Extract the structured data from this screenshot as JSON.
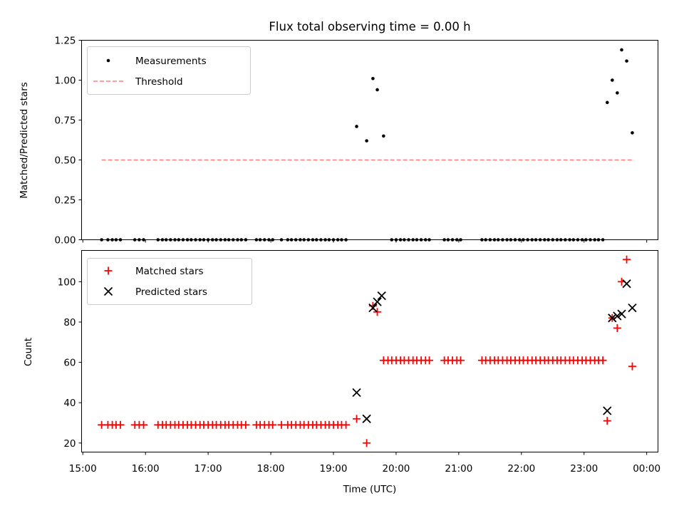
{
  "chart_data": [
    {
      "type": "scatter",
      "title": "Flux total observing time = 0.00 h",
      "ylabel": "Matched/Predicted stars",
      "xlabel": "",
      "ylim": [
        0,
        1.25
      ],
      "yticks": [
        "0.00",
        "0.25",
        "0.50",
        "0.75",
        "1.00",
        "1.25"
      ],
      "ytick_values": [
        0,
        0.25,
        0.5,
        0.75,
        1.0,
        1.25
      ],
      "legend": {
        "placement": "top-left",
        "entries": [
          {
            "label": "Measurements",
            "marker": "dot",
            "color": "#000000"
          },
          {
            "label": "Threshold",
            "marker": "dashed-line",
            "color": "#ff7f7f"
          }
        ]
      },
      "threshold": {
        "name": "Threshold",
        "value": 0.5,
        "x_start": 15.3,
        "x_end": 23.8,
        "color": "#ff7f7f"
      },
      "series": [
        {
          "name": "Measurements",
          "color": "#000000",
          "x": [
            15.3,
            15.4,
            15.47,
            15.53,
            15.6,
            15.83,
            15.9,
            15.97,
            16.2,
            16.27,
            16.33,
            16.4,
            16.47,
            16.53,
            16.6,
            16.67,
            16.73,
            16.8,
            16.87,
            16.93,
            17.0,
            17.07,
            17.13,
            17.2,
            17.27,
            17.33,
            17.4,
            17.47,
            17.53,
            17.6,
            17.77,
            17.83,
            17.9,
            17.97,
            18.03,
            18.17,
            18.27,
            18.33,
            18.4,
            18.47,
            18.53,
            18.6,
            18.67,
            18.73,
            18.8,
            18.87,
            18.93,
            19.0,
            19.07,
            19.13,
            19.2,
            19.37,
            19.53,
            19.63,
            19.7,
            19.8,
            19.93,
            20.0,
            20.07,
            20.13,
            20.2,
            20.27,
            20.33,
            20.4,
            20.47,
            20.53,
            20.77,
            20.83,
            20.9,
            20.97,
            21.03,
            21.37,
            21.43,
            21.5,
            21.57,
            21.63,
            21.7,
            21.77,
            21.83,
            21.9,
            21.97,
            22.03,
            22.1,
            22.17,
            22.23,
            22.3,
            22.37,
            22.43,
            22.5,
            22.57,
            22.63,
            22.7,
            22.77,
            22.83,
            22.9,
            22.97,
            23.03,
            23.1,
            23.17,
            23.23,
            23.3,
            23.37,
            23.45,
            23.53,
            23.6,
            23.68,
            23.77
          ],
          "y": [
            0,
            0,
            0,
            0,
            0,
            0,
            0,
            0,
            0,
            0,
            0,
            0,
            0,
            0,
            0,
            0,
            0,
            0,
            0,
            0,
            0,
            0,
            0,
            0,
            0,
            0,
            0,
            0,
            0,
            0,
            0,
            0,
            0,
            0,
            0,
            0,
            0,
            0,
            0,
            0,
            0,
            0,
            0,
            0,
            0,
            0,
            0,
            0,
            0,
            0,
            0,
            0.71,
            0.62,
            1.01,
            0.94,
            0.65,
            0,
            0,
            0,
            0,
            0,
            0,
            0,
            0,
            0,
            0,
            0,
            0,
            0,
            0,
            0,
            0,
            0,
            0,
            0,
            0,
            0,
            0,
            0,
            0,
            0,
            0,
            0,
            0,
            0,
            0,
            0,
            0,
            0,
            0,
            0,
            0,
            0,
            0,
            0,
            0,
            0,
            0,
            0,
            0,
            0,
            0.86,
            1.0,
            0.92,
            1.19,
            1.12,
            0.67
          ]
        }
      ]
    },
    {
      "type": "scatter",
      "xlabel": "Time (UTC)",
      "ylabel": "Count",
      "ylim": [
        15.5,
        115.5
      ],
      "yticks": [
        "20",
        "40",
        "60",
        "80",
        "100"
      ],
      "ytick_values": [
        20,
        40,
        60,
        80,
        100
      ],
      "xlim": [
        14.98,
        24.18
      ],
      "xticks": [
        "15:00",
        "16:00",
        "17:00",
        "18:00",
        "19:00",
        "20:00",
        "21:00",
        "22:00",
        "23:00",
        "00:00"
      ],
      "xtick_values": [
        15,
        16,
        17,
        18,
        19,
        20,
        21,
        22,
        23,
        24
      ],
      "legend": {
        "placement": "top-left",
        "entries": [
          {
            "label": "Matched stars",
            "marker": "plus",
            "color": "#ff0000"
          },
          {
            "label": "Predicted stars",
            "marker": "x",
            "color": "#000000"
          }
        ]
      },
      "series": [
        {
          "name": "Matched stars",
          "color": "#ff0000",
          "x": [
            15.3,
            15.4,
            15.47,
            15.53,
            15.6,
            15.83,
            15.9,
            15.97,
            16.2,
            16.27,
            16.33,
            16.4,
            16.47,
            16.53,
            16.6,
            16.67,
            16.73,
            16.8,
            16.87,
            16.93,
            17.0,
            17.07,
            17.13,
            17.2,
            17.27,
            17.33,
            17.4,
            17.47,
            17.53,
            17.6,
            17.77,
            17.83,
            17.9,
            17.97,
            18.03,
            18.17,
            18.27,
            18.33,
            18.4,
            18.47,
            18.53,
            18.6,
            18.67,
            18.73,
            18.8,
            18.87,
            18.93,
            19.0,
            19.07,
            19.13,
            19.2,
            19.37,
            19.53,
            19.63,
            19.7,
            19.8,
            19.87,
            19.93,
            20.0,
            20.07,
            20.13,
            20.2,
            20.27,
            20.33,
            20.4,
            20.47,
            20.53,
            20.77,
            20.83,
            20.9,
            20.97,
            21.03,
            21.37,
            21.43,
            21.5,
            21.57,
            21.63,
            21.7,
            21.77,
            21.83,
            21.9,
            21.97,
            22.03,
            22.1,
            22.17,
            22.23,
            22.3,
            22.37,
            22.43,
            22.5,
            22.57,
            22.63,
            22.7,
            22.77,
            22.83,
            22.9,
            22.97,
            23.03,
            23.1,
            23.17,
            23.23,
            23.3,
            23.37,
            23.45,
            23.53,
            23.6,
            23.68,
            23.77
          ],
          "y": [
            29,
            29,
            29,
            29,
            29,
            29,
            29,
            29,
            29,
            29,
            29,
            29,
            29,
            29,
            29,
            29,
            29,
            29,
            29,
            29,
            29,
            29,
            29,
            29,
            29,
            29,
            29,
            29,
            29,
            29,
            29,
            29,
            29,
            29,
            29,
            29,
            29,
            29,
            29,
            29,
            29,
            29,
            29,
            29,
            29,
            29,
            29,
            29,
            29,
            29,
            29,
            32,
            20,
            88,
            85,
            61,
            61,
            61,
            61,
            61,
            61,
            61,
            61,
            61,
            61,
            61,
            61,
            61,
            61,
            61,
            61,
            61,
            61,
            61,
            61,
            61,
            61,
            61,
            61,
            61,
            61,
            61,
            61,
            61,
            61,
            61,
            61,
            61,
            61,
            61,
            61,
            61,
            61,
            61,
            61,
            61,
            61,
            61,
            61,
            61,
            61,
            61,
            31,
            82,
            77,
            100,
            111,
            58
          ]
        },
        {
          "name": "Predicted stars",
          "color": "#000000",
          "x": [
            19.37,
            19.53,
            19.63,
            19.7,
            19.77,
            23.37,
            23.45,
            23.53,
            23.6,
            23.68,
            23.77
          ],
          "y": [
            45,
            32,
            87,
            90,
            93,
            36,
            82,
            83,
            84,
            99,
            87
          ]
        }
      ]
    }
  ]
}
